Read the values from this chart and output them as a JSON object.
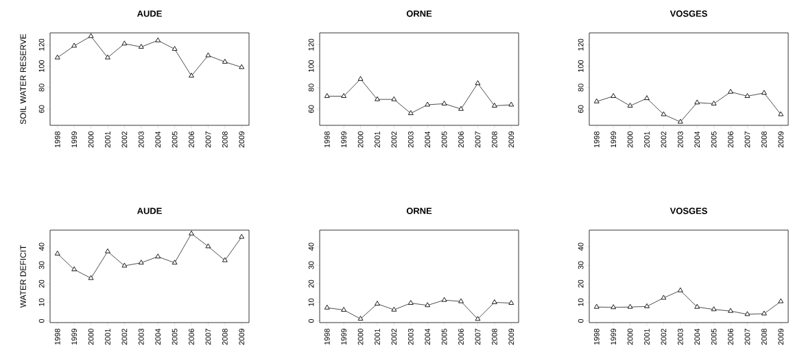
{
  "chart_data": [
    {
      "type": "line",
      "title": "AUDE",
      "ylabel": "SOIL WATER RESERVE",
      "categories": [
        "1998",
        "1999",
        "2000",
        "2001",
        "2002",
        "2003",
        "2004",
        "2005",
        "2006",
        "2007",
        "2008",
        "2009"
      ],
      "values": [
        108,
        119,
        128,
        108,
        121,
        118,
        124,
        116,
        91,
        110,
        104,
        99
      ],
      "color": "#000000",
      "ylim": [
        44.8,
        131.1
      ],
      "yticks": [
        60,
        80,
        100,
        120
      ],
      "marker": "triangle",
      "line_style": "solid"
    },
    {
      "type": "line",
      "title": "ORNE",
      "categories": [
        "1998",
        "1999",
        "2000",
        "2001",
        "2002",
        "2003",
        "2004",
        "2005",
        "2006",
        "2007",
        "2008",
        "2009"
      ],
      "values": [
        72,
        72,
        88,
        69,
        69,
        56,
        64,
        65,
        60,
        84,
        63,
        64
      ],
      "color": "#000000",
      "ylim": [
        44.8,
        131.1
      ],
      "yticks": [
        60,
        80,
        100,
        120
      ],
      "marker": "triangle",
      "line_style": "solid"
    },
    {
      "type": "line",
      "title": "VOSGES",
      "categories": [
        "1998",
        "1999",
        "2000",
        "2001",
        "2002",
        "2003",
        "2004",
        "2005",
        "2006",
        "2007",
        "2008",
        "2009"
      ],
      "values": [
        67,
        72,
        63,
        70,
        55,
        48,
        66,
        65,
        76,
        72,
        75,
        55
      ],
      "color": "#000000",
      "ylim": [
        44.8,
        131.1
      ],
      "yticks": [
        60,
        80,
        100,
        120
      ],
      "marker": "triangle",
      "line_style": "solid"
    },
    {
      "type": "line",
      "title": "AUDE",
      "ylabel": "WATER DEFICIT",
      "categories": [
        "1998",
        "1999",
        "2000",
        "2001",
        "2002",
        "2003",
        "2004",
        "2005",
        "2006",
        "2007",
        "2008",
        "2009"
      ],
      "values": [
        36.2,
        27.7,
        23,
        37.4,
        29.7,
        31.3,
        34.6,
        31.3,
        47,
        40.1,
        32.6,
        45.2
      ],
      "color": "#000000",
      "ylim": [
        -0.9,
        48.9
      ],
      "yticks": [
        0,
        10,
        20,
        30,
        40
      ],
      "marker": "triangle",
      "line_style": "solid"
    },
    {
      "type": "line",
      "title": "ORNE",
      "categories": [
        "1998",
        "1999",
        "2000",
        "2001",
        "2002",
        "2003",
        "2004",
        "2005",
        "2006",
        "2007",
        "2008",
        "2009"
      ],
      "values": [
        7.1,
        5.9,
        1.1,
        9.2,
        6,
        9.6,
        8.4,
        11.2,
        10.5,
        1,
        10,
        9.6
      ],
      "color": "#000000",
      "ylim": [
        -0.9,
        48.9
      ],
      "yticks": [
        0,
        10,
        20,
        30,
        40
      ],
      "marker": "triangle",
      "line_style": "solid"
    },
    {
      "type": "line",
      "title": "VOSGES",
      "categories": [
        "1998",
        "1999",
        "2000",
        "2001",
        "2002",
        "2003",
        "2004",
        "2005",
        "2006",
        "2007",
        "2008",
        "2009"
      ],
      "values": [
        7.5,
        7.3,
        7.5,
        7.8,
        12.4,
        16.4,
        7.5,
        6.2,
        5.3,
        3.6,
        3.9,
        10.5
      ],
      "color": "#000000",
      "ylim": [
        -0.9,
        48.9
      ],
      "yticks": [
        0,
        10,
        20,
        30,
        40
      ],
      "marker": "triangle",
      "line_style": "solid"
    }
  ]
}
